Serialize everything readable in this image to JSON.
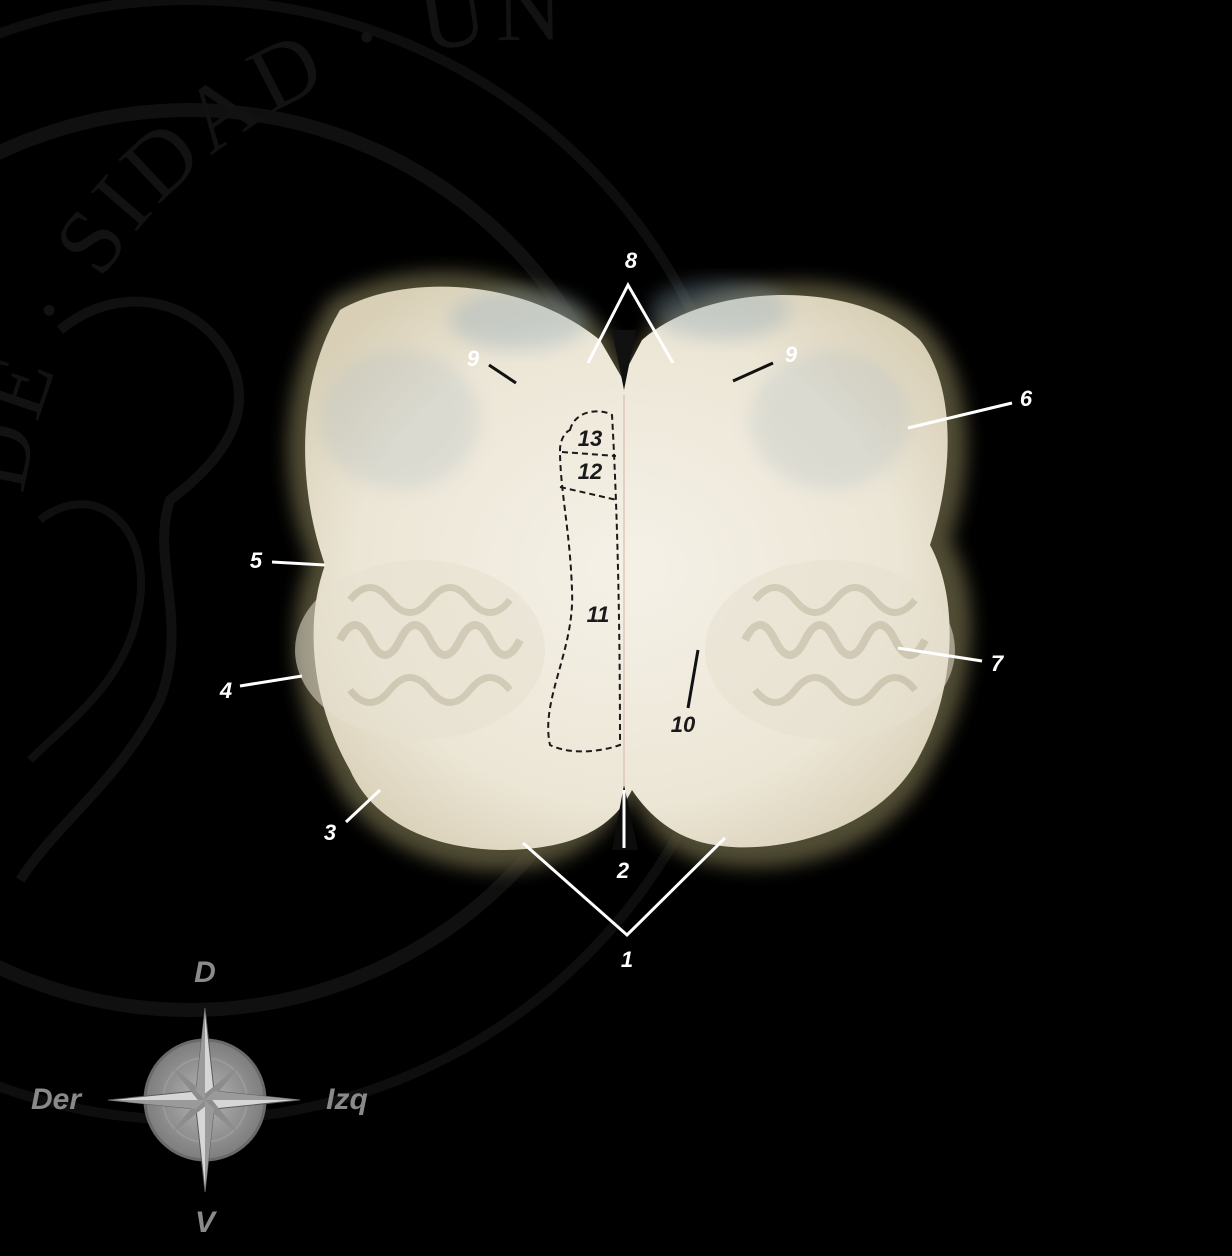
{
  "image": {
    "subject": "Spinal cord cross-section (médula espinal)",
    "background_color": "#000000",
    "tissue_color": "#f1ece0"
  },
  "watermark": {
    "seal_text": "· DE · SIDAD · UNIVERSITAS · VIRTUS · PRO"
  },
  "labels": {
    "l1": "1",
    "l2": "2",
    "l3": "3",
    "l4": "4",
    "l5": "5",
    "l6": "6",
    "l7": "7",
    "l8": "8",
    "l9_left": "9",
    "l9_right": "9",
    "l10": "10",
    "l11": "11",
    "l12": "12",
    "l13": "13"
  },
  "compass": {
    "top": "D",
    "bottom": "V",
    "left": "Der",
    "right": "Izq"
  }
}
